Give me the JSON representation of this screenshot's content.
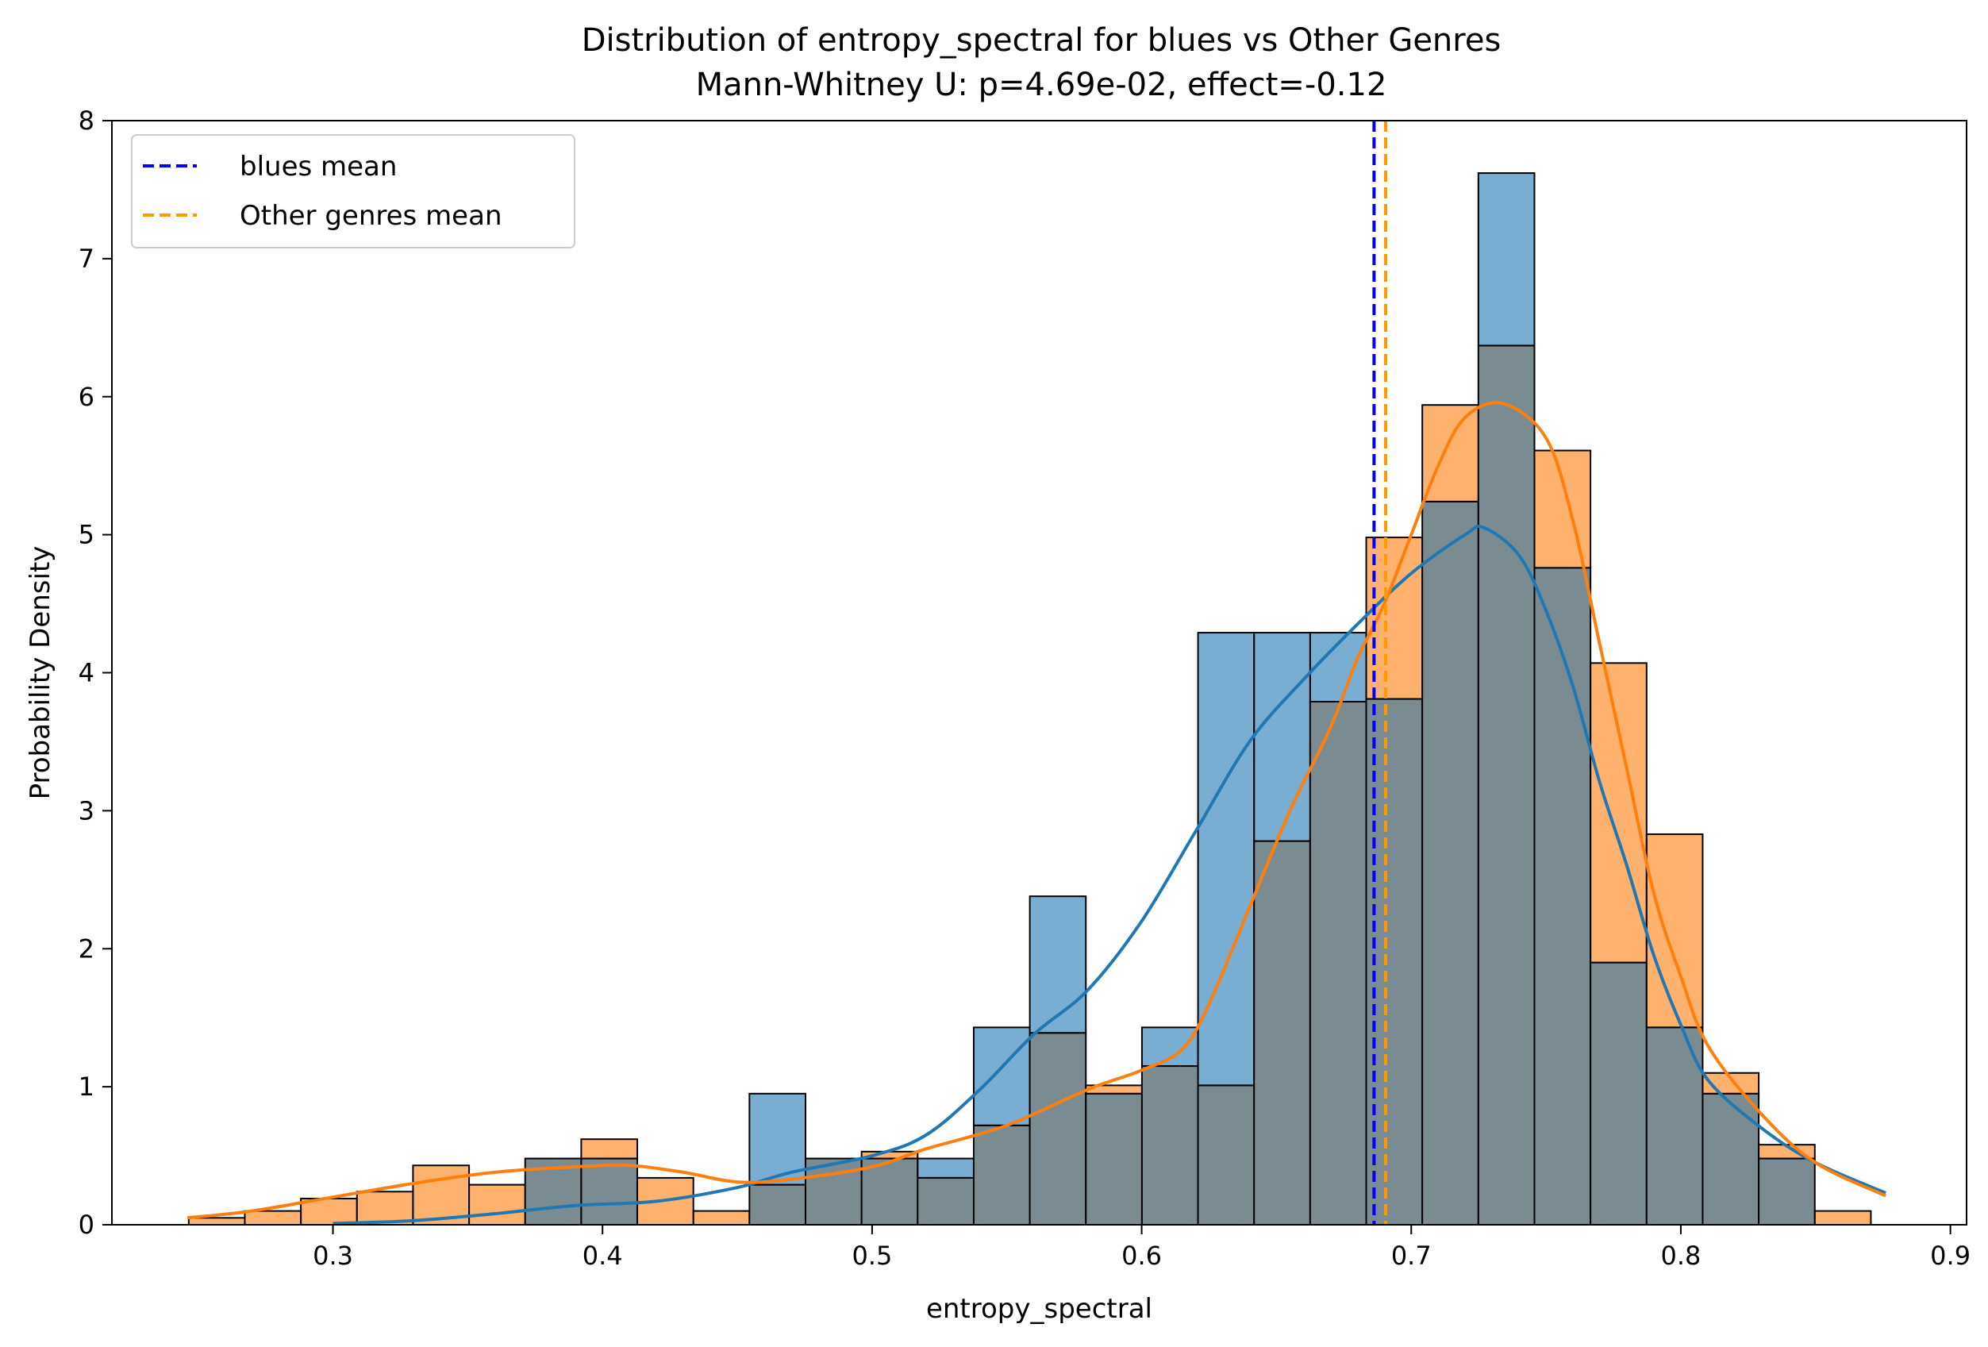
{
  "chart_data": {
    "type": "histogram",
    "title": "Distribution of entropy_spectral for blues vs Other Genres",
    "subtitle": "Mann-Whitney U: p=4.69e-02, effect=-0.12",
    "xlabel": "entropy_spectral",
    "ylabel": "Probability Density",
    "xlim": [
      0.218,
      0.906
    ],
    "ylim": [
      0,
      8
    ],
    "xticks": [
      0.3,
      0.4,
      0.5,
      0.6,
      0.7,
      0.8,
      0.9
    ],
    "xtick_labels": [
      "0.3",
      "0.4",
      "0.5",
      "0.6",
      "0.7",
      "0.8",
      "0.9"
    ],
    "yticks": [
      0,
      1,
      2,
      3,
      4,
      5,
      6,
      7,
      8
    ],
    "ytick_labels": [
      "0",
      "1",
      "2",
      "3",
      "4",
      "5",
      "6",
      "7",
      "8"
    ],
    "bin_edges": [
      0.2465,
      0.2673,
      0.2881,
      0.3089,
      0.3297,
      0.3505,
      0.3713,
      0.3921,
      0.4129,
      0.4337,
      0.4545,
      0.4753,
      0.4961,
      0.5169,
      0.5377,
      0.5585,
      0.5793,
      0.6001,
      0.6209,
      0.6417,
      0.6625,
      0.6833,
      0.7041,
      0.7249,
      0.7457,
      0.7665,
      0.7873,
      0.8081,
      0.8289,
      0.8497,
      0.8705
    ],
    "series": [
      {
        "name": "Other genres",
        "color": "#ff7f0e",
        "values": [
          0.05,
          0.1,
          0.19,
          0.24,
          0.43,
          0.29,
          0.48,
          0.62,
          0.34,
          0.1,
          0.29,
          0.48,
          0.53,
          0.34,
          0.72,
          1.39,
          1.01,
          1.15,
          1.01,
          2.78,
          3.79,
          4.98,
          5.94,
          6.37,
          5.61,
          4.07,
          2.83,
          1.1,
          0.58,
          0.1
        ],
        "kde": [
          [
            0.246,
            0.05
          ],
          [
            0.27,
            0.1
          ],
          [
            0.3,
            0.2
          ],
          [
            0.33,
            0.3
          ],
          [
            0.36,
            0.38
          ],
          [
            0.39,
            0.42
          ],
          [
            0.41,
            0.43
          ],
          [
            0.43,
            0.38
          ],
          [
            0.45,
            0.31
          ],
          [
            0.47,
            0.33
          ],
          [
            0.5,
            0.42
          ],
          [
            0.52,
            0.55
          ],
          [
            0.55,
            0.72
          ],
          [
            0.58,
            0.98
          ],
          [
            0.6,
            1.12
          ],
          [
            0.615,
            1.27
          ],
          [
            0.625,
            1.6
          ],
          [
            0.64,
            2.3
          ],
          [
            0.655,
            3.0
          ],
          [
            0.67,
            3.6
          ],
          [
            0.68,
            4.1
          ],
          [
            0.69,
            4.5
          ],
          [
            0.7,
            5.0
          ],
          [
            0.71,
            5.5
          ],
          [
            0.72,
            5.85
          ],
          [
            0.734,
            5.95
          ],
          [
            0.75,
            5.7
          ],
          [
            0.76,
            5.1
          ],
          [
            0.77,
            4.2
          ],
          [
            0.78,
            3.3
          ],
          [
            0.79,
            2.4
          ],
          [
            0.8,
            1.8
          ],
          [
            0.81,
            1.3
          ],
          [
            0.83,
            0.8
          ],
          [
            0.85,
            0.45
          ],
          [
            0.876,
            0.21
          ]
        ]
      },
      {
        "name": "blues",
        "color": "#1f77b4",
        "values": [
          0,
          0,
          0,
          0,
          0,
          0,
          0.48,
          0.48,
          0,
          0,
          0.95,
          0.48,
          0.48,
          0.48,
          1.43,
          2.38,
          0.95,
          1.43,
          4.29,
          4.29,
          4.29,
          3.81,
          5.24,
          7.62,
          4.76,
          1.9,
          1.43,
          0.95,
          0.48,
          0
        ],
        "kde": [
          [
            0.3,
            0.01
          ],
          [
            0.33,
            0.03
          ],
          [
            0.36,
            0.08
          ],
          [
            0.39,
            0.14
          ],
          [
            0.42,
            0.17
          ],
          [
            0.45,
            0.27
          ],
          [
            0.47,
            0.38
          ],
          [
            0.5,
            0.5
          ],
          [
            0.52,
            0.65
          ],
          [
            0.54,
            0.98
          ],
          [
            0.56,
            1.38
          ],
          [
            0.58,
            1.7
          ],
          [
            0.6,
            2.2
          ],
          [
            0.62,
            2.85
          ],
          [
            0.64,
            3.5
          ],
          [
            0.66,
            3.95
          ],
          [
            0.68,
            4.35
          ],
          [
            0.7,
            4.72
          ],
          [
            0.72,
            5.0
          ],
          [
            0.727,
            5.05
          ],
          [
            0.74,
            4.85
          ],
          [
            0.75,
            4.45
          ],
          [
            0.76,
            3.9
          ],
          [
            0.77,
            3.2
          ],
          [
            0.78,
            2.6
          ],
          [
            0.79,
            1.95
          ],
          [
            0.8,
            1.45
          ],
          [
            0.81,
            1.05
          ],
          [
            0.83,
            0.7
          ],
          [
            0.85,
            0.45
          ],
          [
            0.876,
            0.23
          ]
        ]
      }
    ],
    "overlap_color": "#7a8c91",
    "mean_lines": [
      {
        "label": "blues mean",
        "x": 0.6862,
        "color": "#0000ff",
        "style": "dashed"
      },
      {
        "label": "Other genres mean",
        "x": 0.6905,
        "color": "#ff9900",
        "style": "dashed"
      }
    ],
    "legend": {
      "position": "upper-left",
      "entries": [
        "blues mean",
        "Other genres mean"
      ]
    },
    "grid": false
  }
}
